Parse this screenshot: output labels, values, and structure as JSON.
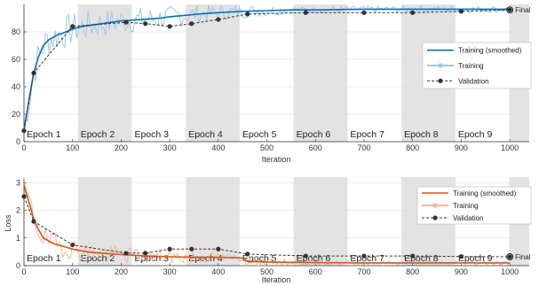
{
  "chart_data": [
    {
      "type": "line",
      "ylabel": "",
      "xlabel": "Iteration",
      "xlim": [
        0,
        1040
      ],
      "ylim": [
        0,
        100
      ],
      "xticks": [
        0,
        100,
        200,
        300,
        400,
        500,
        600,
        700,
        800,
        900,
        1000
      ],
      "yticks": [
        0,
        20,
        40,
        60,
        80
      ],
      "epochs": [
        "Epoch 1",
        "Epoch 2",
        "Epoch 3",
        "Epoch 4",
        "Epoch 5",
        "Epoch 6",
        "Epoch 7",
        "Epoch 8",
        "Epoch 9"
      ],
      "epoch_iterations": 111,
      "legend_position": "right",
      "legend": [
        "Training (smoothed)",
        "Training",
        "Validation"
      ],
      "final_label": "Final",
      "final_value": 96,
      "colors": {
        "smoothed": "#0b6fb8",
        "raw": "#9ec8e8",
        "validation": "#333333"
      },
      "series": [
        {
          "name": "Training (smoothed)",
          "x": [
            0,
            10,
            20,
            30,
            40,
            50,
            60,
            70,
            80,
            100,
            120,
            140,
            160,
            180,
            200,
            220,
            240,
            260,
            280,
            300,
            330,
            360,
            400,
            450,
            500,
            550,
            600,
            700,
            800,
            900,
            1000
          ],
          "y": [
            8,
            30,
            50,
            62,
            70,
            74,
            76,
            78,
            79,
            82,
            84,
            85,
            86,
            87,
            88,
            88.5,
            89,
            89.5,
            90,
            91,
            92,
            93,
            94,
            95,
            95.5,
            96,
            96,
            96.5,
            96.5,
            96.5,
            96.5
          ]
        },
        {
          "name": "Validation",
          "x": [
            0,
            20,
            100,
            210,
            250,
            300,
            345,
            400,
            460,
            580,
            700,
            800,
            900,
            1000
          ],
          "y": [
            8,
            50,
            84,
            87,
            86,
            84,
            86,
            89,
            93,
            94,
            94,
            94,
            95,
            96
          ]
        }
      ]
    },
    {
      "type": "line",
      "ylabel": "Loss",
      "xlabel": "Iteration",
      "xlim": [
        0,
        1040
      ],
      "ylim": [
        0,
        3.2
      ],
      "xticks": [
        0,
        100,
        200,
        300,
        400,
        500,
        600,
        700,
        800,
        900,
        1000
      ],
      "yticks": [
        0,
        1,
        2,
        3
      ],
      "epochs": [
        "Epoch 1",
        "Epoch 2",
        "Epoch 3",
        "Epoch 4",
        "Epoch 5",
        "Epoch 6",
        "Epoch 7",
        "Epoch 8",
        "Epoch 9"
      ],
      "epoch_iterations": 111,
      "legend_position": "top-right",
      "legend": [
        "Training (smoothed)",
        "Training",
        "Validation"
      ],
      "final_label": "Final",
      "final_value": 0.32,
      "colors": {
        "smoothed": "#d2561c",
        "raw": "#f2b89a",
        "validation": "#333333"
      },
      "series": [
        {
          "name": "Training (smoothed)",
          "x": [
            0,
            10,
            20,
            30,
            40,
            60,
            80,
            100,
            130,
            160,
            200,
            250,
            300,
            350,
            400,
            450,
            460,
            500,
            550,
            600,
            700,
            800,
            900,
            1000
          ],
          "y": [
            2.9,
            2.3,
            1.7,
            1.3,
            1.0,
            0.8,
            0.7,
            0.6,
            0.5,
            0.45,
            0.4,
            0.35,
            0.32,
            0.3,
            0.3,
            0.28,
            0.15,
            0.13,
            0.12,
            0.11,
            0.1,
            0.1,
            0.1,
            0.1
          ]
        },
        {
          "name": "Validation",
          "x": [
            0,
            20,
            100,
            210,
            250,
            300,
            345,
            400,
            460,
            580,
            700,
            800,
            900,
            1000
          ],
          "y": [
            2.5,
            1.6,
            0.75,
            0.45,
            0.45,
            0.6,
            0.6,
            0.6,
            0.42,
            0.35,
            0.35,
            0.35,
            0.33,
            0.32
          ]
        }
      ]
    }
  ]
}
